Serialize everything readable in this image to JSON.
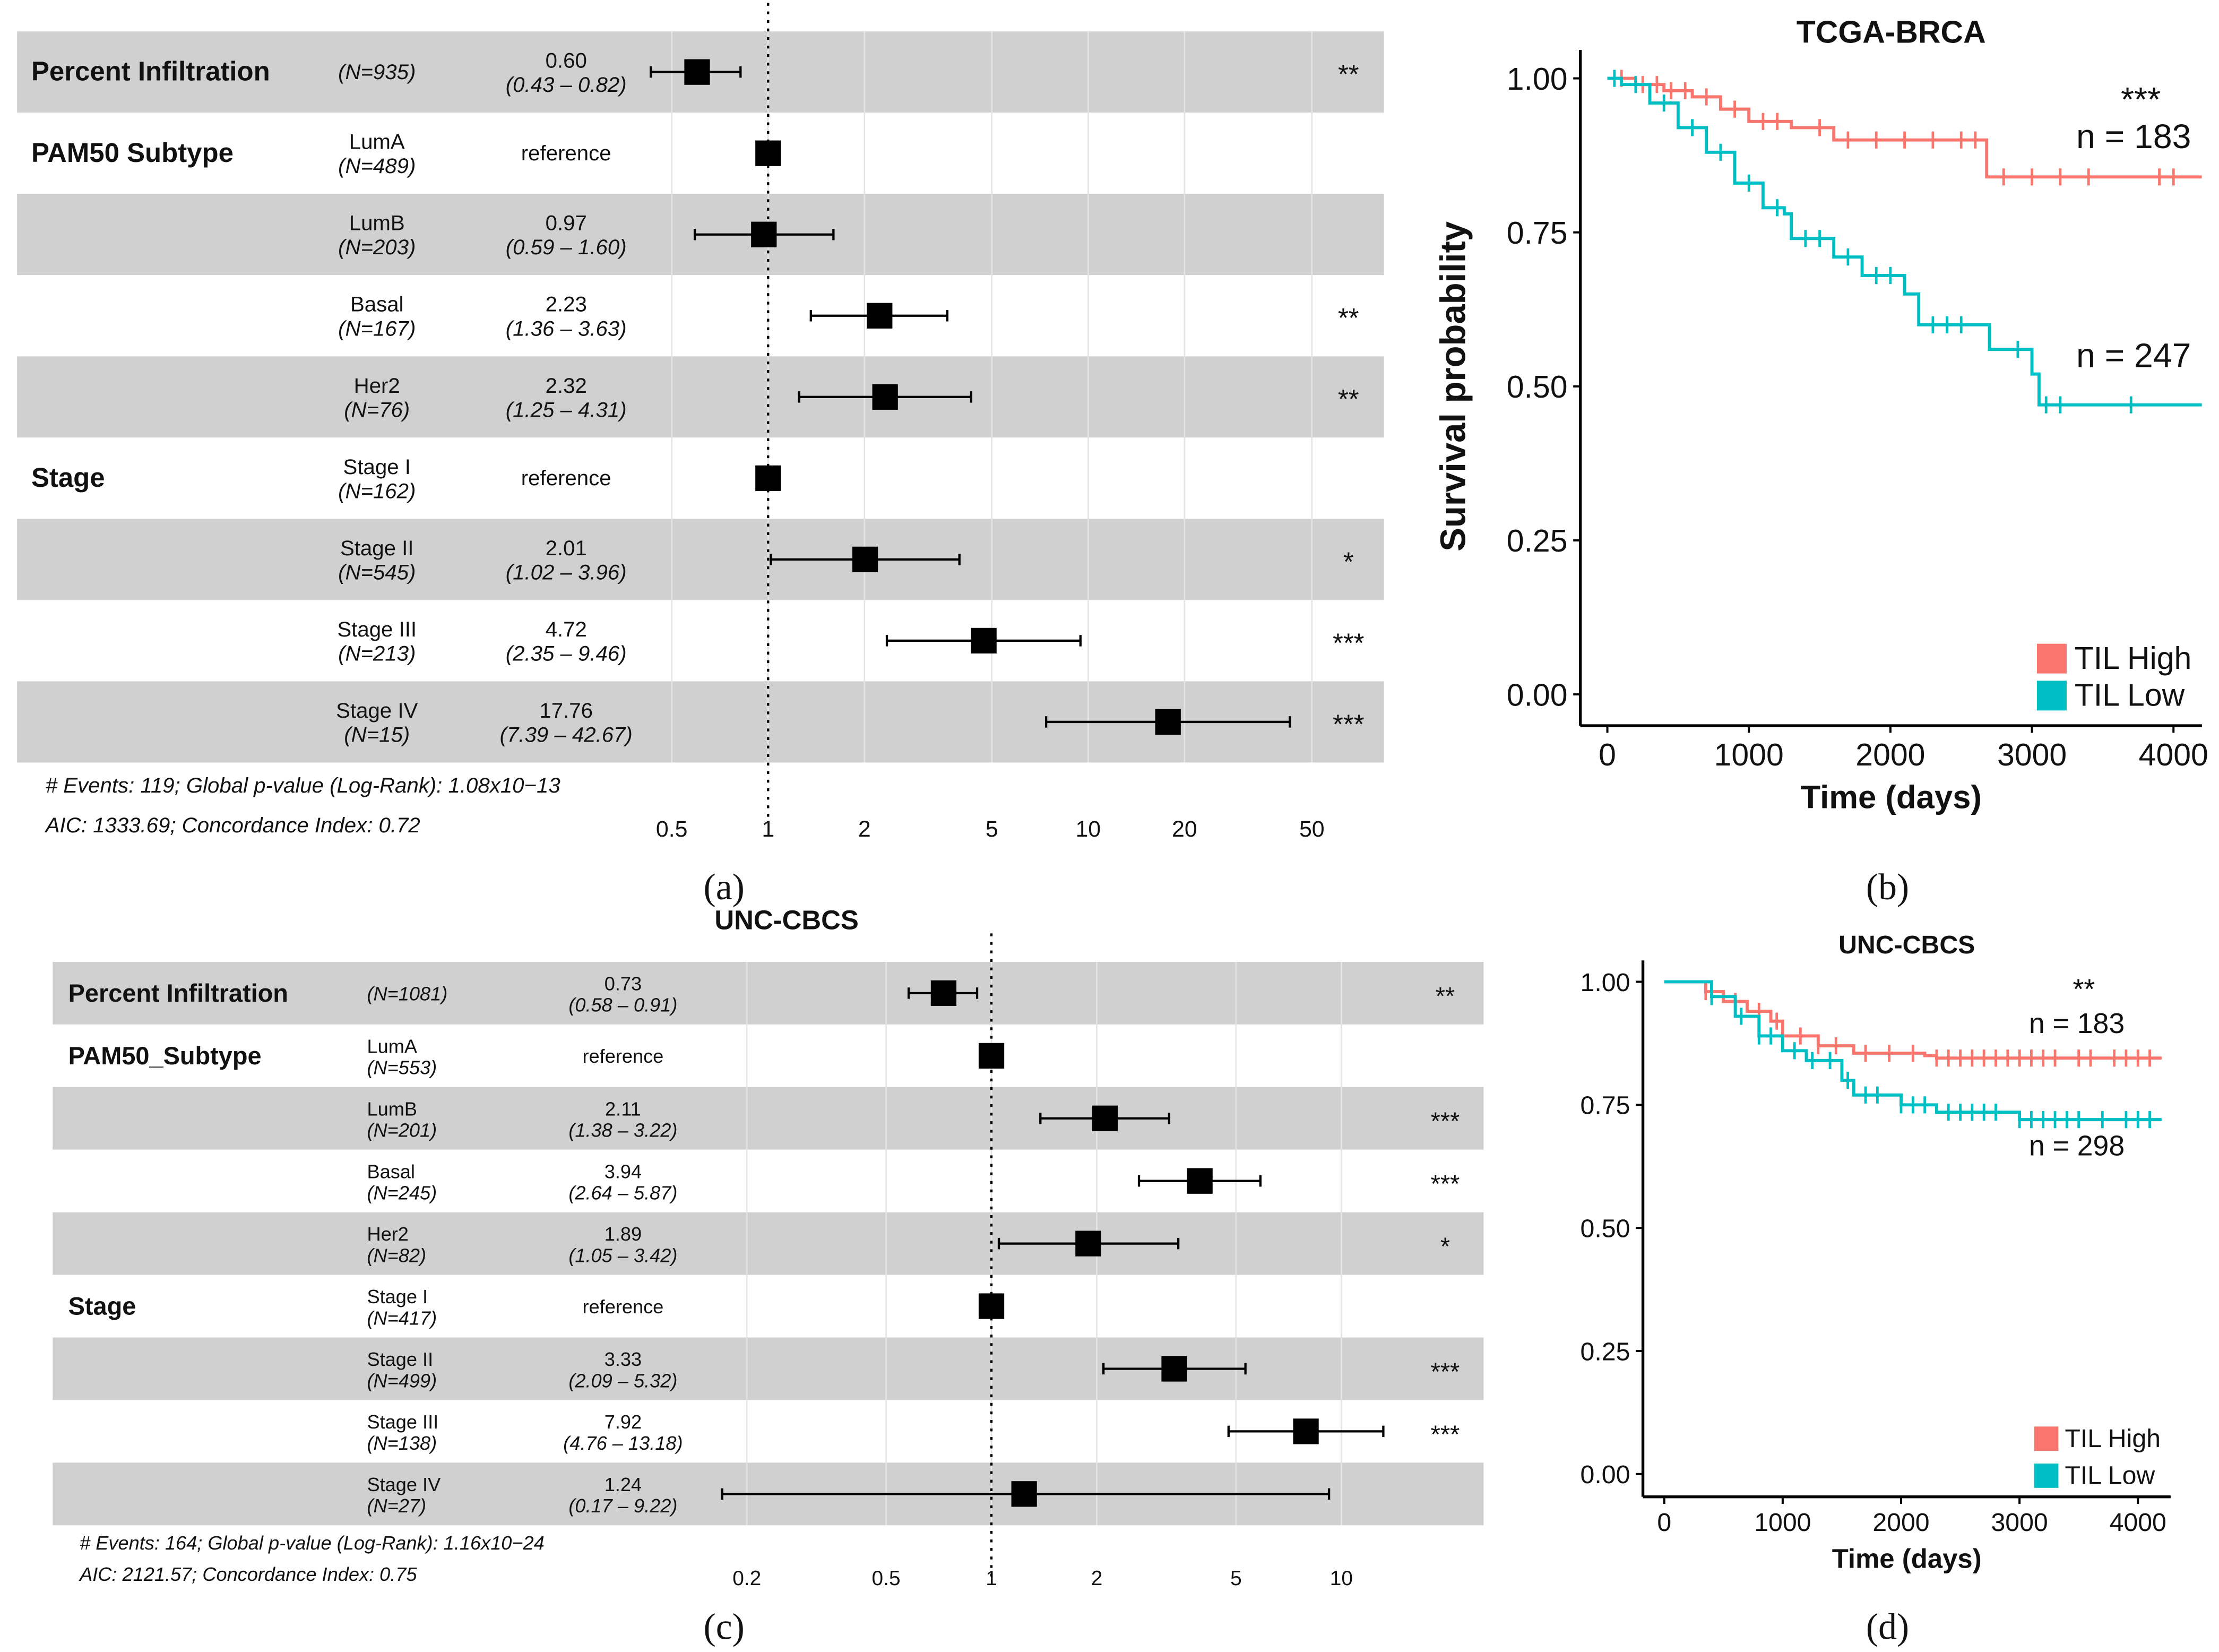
{
  "panel_labels": [
    "(a)",
    "(b)",
    "(c)",
    "(d)"
  ],
  "chart_data": [
    {
      "type": "forest",
      "title": "",
      "xscale": "log",
      "xticks": [
        "0.5",
        "1",
        "2",
        "5",
        "10",
        "20",
        "50"
      ],
      "xtick_values": [
        0.5,
        1,
        2,
        5,
        10,
        20,
        50
      ],
      "rows": [
        {
          "group": "Percent Infiltration",
          "label": "",
          "n": "(N=935)",
          "hr": "0.60",
          "ci": "(0.43 –  0.82)",
          "est": 0.6,
          "lo": 0.43,
          "hi": 0.82,
          "stars": "**",
          "shaded": true
        },
        {
          "group": "PAM50 Subtype",
          "label": "LumA",
          "n": "(N=489)",
          "hr": "reference",
          "ci": "",
          "est": 1,
          "lo": null,
          "hi": null,
          "stars": "",
          "shaded": false
        },
        {
          "group": "",
          "label": "LumB",
          "n": "(N=203)",
          "hr": "0.97",
          "ci": "(0.59 –  1.60)",
          "est": 0.97,
          "lo": 0.59,
          "hi": 1.6,
          "stars": "",
          "shaded": true
        },
        {
          "group": "",
          "label": "Basal",
          "n": "(N=167)",
          "hr": "2.23",
          "ci": "(1.36 –  3.63)",
          "est": 2.23,
          "lo": 1.36,
          "hi": 3.63,
          "stars": "**",
          "shaded": false
        },
        {
          "group": "",
          "label": "Her2",
          "n": "(N=76)",
          "hr": "2.32",
          "ci": "(1.25 –  4.31)",
          "est": 2.32,
          "lo": 1.25,
          "hi": 4.31,
          "stars": "**",
          "shaded": true
        },
        {
          "group": "Stage",
          "label": "Stage I",
          "n": "(N=162)",
          "hr": "reference",
          "ci": "",
          "est": 1,
          "lo": null,
          "hi": null,
          "stars": "",
          "shaded": false
        },
        {
          "group": "",
          "label": "Stage II",
          "n": "(N=545)",
          "hr": "2.01",
          "ci": "(1.02 –  3.96)",
          "est": 2.01,
          "lo": 1.02,
          "hi": 3.96,
          "stars": "*",
          "shaded": true
        },
        {
          "group": "",
          "label": "Stage III",
          "n": "(N=213)",
          "hr": "4.72",
          "ci": "(2.35 –  9.46)",
          "est": 4.72,
          "lo": 2.35,
          "hi": 9.46,
          "stars": "***",
          "shaded": false
        },
        {
          "group": "",
          "label": "Stage IV",
          "n": "(N=15)",
          "hr": "17.76",
          "ci": "(7.39 – 42.67)",
          "est": 17.76,
          "lo": 7.39,
          "hi": 42.67,
          "stars": "***",
          "shaded": true
        }
      ],
      "footer": [
        "# Events: 119; Global p-value (Log-Rank): 1.08x10−13",
        "AIC: 1333.69; Concordance Index: 0.72"
      ]
    },
    {
      "type": "line",
      "title": "TCGA-BRCA",
      "xlabel": "Time (days)",
      "ylabel": "Survival probability",
      "xlim": [
        0,
        4200
      ],
      "ylim": [
        0,
        1
      ],
      "xticks": [
        "0",
        "1000",
        "2000",
        "3000",
        "4000"
      ],
      "xtick_values": [
        0,
        1000,
        2000,
        3000,
        4000
      ],
      "yticks": [
        "0.00",
        "0.25",
        "0.50",
        "0.75",
        "1.00"
      ],
      "ytick_values": [
        0,
        0.25,
        0.5,
        0.75,
        1
      ],
      "legend_position": "bottom-right",
      "significance": "***",
      "series": [
        {
          "name": "TIL High",
          "color": "#f8766d",
          "n_label": "n = 183",
          "points": [
            [
              0,
              1
            ],
            [
              200,
              0.99
            ],
            [
              400,
              0.98
            ],
            [
              600,
              0.97
            ],
            [
              800,
              0.95
            ],
            [
              1000,
              0.93
            ],
            [
              1300,
              0.92
            ],
            [
              1600,
              0.9
            ],
            [
              2650,
              0.9
            ],
            [
              2680,
              0.84
            ],
            [
              4200,
              0.84
            ]
          ],
          "censor": [
            100,
            250,
            350,
            450,
            550,
            700,
            900,
            1100,
            1200,
            1500,
            1700,
            1900,
            2100,
            2300,
            2500,
            2600,
            2800,
            3000,
            3200,
            3400,
            3900,
            4000
          ]
        },
        {
          "name": "TIL Low",
          "color": "#00bfc4",
          "n_label": "n = 247",
          "points": [
            [
              0,
              1
            ],
            [
              100,
              0.99
            ],
            [
              300,
              0.96
            ],
            [
              500,
              0.92
            ],
            [
              700,
              0.88
            ],
            [
              900,
              0.83
            ],
            [
              1100,
              0.79
            ],
            [
              1250,
              0.78
            ],
            [
              1300,
              0.74
            ],
            [
              1600,
              0.71
            ],
            [
              1800,
              0.68
            ],
            [
              2100,
              0.65
            ],
            [
              2200,
              0.6
            ],
            [
              2650,
              0.6
            ],
            [
              2700,
              0.56
            ],
            [
              2950,
              0.56
            ],
            [
              3000,
              0.52
            ],
            [
              3050,
              0.47
            ],
            [
              4200,
              0.47
            ]
          ],
          "censor": [
            50,
            200,
            400,
            600,
            800,
            1000,
            1200,
            1400,
            1500,
            1700,
            1900,
            2000,
            2300,
            2400,
            2500,
            2900,
            3100,
            3200,
            3700
          ]
        }
      ]
    },
    {
      "type": "forest",
      "title": "UNC-CBCS",
      "xscale": "log",
      "xticks": [
        "0.2",
        "0.5",
        "1",
        "2",
        "5",
        "10"
      ],
      "xtick_values": [
        0.2,
        0.5,
        1,
        2,
        5,
        10
      ],
      "rows": [
        {
          "group": "Percent Infiltration",
          "label": "",
          "n": "(N=1081)",
          "hr": "0.73",
          "ci": "(0.58 –  0.91)",
          "est": 0.73,
          "lo": 0.58,
          "hi": 0.91,
          "stars": "**",
          "shaded": true
        },
        {
          "group": "PAM50_Subtype",
          "label": "LumA",
          "n": "(N=553)",
          "hr": "reference",
          "ci": "",
          "est": 1,
          "lo": null,
          "hi": null,
          "stars": "",
          "shaded": false
        },
        {
          "group": "",
          "label": "LumB",
          "n": "(N=201)",
          "hr": "2.11",
          "ci": "(1.38 –  3.22)",
          "est": 2.11,
          "lo": 1.38,
          "hi": 3.22,
          "stars": "***",
          "shaded": true
        },
        {
          "group": "",
          "label": "Basal",
          "n": "(N=245)",
          "hr": "3.94",
          "ci": "(2.64 –  5.87)",
          "est": 3.94,
          "lo": 2.64,
          "hi": 5.87,
          "stars": "***",
          "shaded": false
        },
        {
          "group": "",
          "label": "Her2",
          "n": "(N=82)",
          "hr": "1.89",
          "ci": "(1.05 –  3.42)",
          "est": 1.89,
          "lo": 1.05,
          "hi": 3.42,
          "stars": "*",
          "shaded": true
        },
        {
          "group": "Stage",
          "label": "Stage I",
          "n": "(N=417)",
          "hr": "reference",
          "ci": "",
          "est": 1,
          "lo": null,
          "hi": null,
          "stars": "",
          "shaded": false
        },
        {
          "group": "",
          "label": "Stage II",
          "n": "(N=499)",
          "hr": "3.33",
          "ci": "(2.09 –  5.32)",
          "est": 3.33,
          "lo": 2.09,
          "hi": 5.32,
          "stars": "***",
          "shaded": true
        },
        {
          "group": "",
          "label": "Stage III",
          "n": "(N=138)",
          "hr": "7.92",
          "ci": "(4.76 – 13.18)",
          "est": 7.92,
          "lo": 4.76,
          "hi": 13.18,
          "stars": "***",
          "shaded": false
        },
        {
          "group": "",
          "label": "Stage IV",
          "n": "(N=27)",
          "hr": "1.24",
          "ci": "(0.17 –  9.22)",
          "est": 1.24,
          "lo": 0.17,
          "hi": 9.22,
          "stars": "",
          "shaded": true
        }
      ],
      "footer": [
        "# Events: 164; Global p-value (Log-Rank): 1.16x10−24",
        "AIC: 2121.57; Concordance Index: 0.75"
      ]
    },
    {
      "type": "line",
      "title": "UNC-CBCS",
      "xlabel": "Time (days)",
      "ylabel": "",
      "xlim": [
        0,
        4200
      ],
      "ylim": [
        0,
        1
      ],
      "xticks": [
        "0",
        "1000",
        "2000",
        "3000",
        "4000"
      ],
      "xtick_values": [
        0,
        1000,
        2000,
        3000,
        4000
      ],
      "yticks": [
        "0.00",
        "0.25",
        "0.50",
        "0.75",
        "1.00"
      ],
      "ytick_values": [
        0,
        0.25,
        0.5,
        0.75,
        1
      ],
      "legend_position": "bottom-right",
      "significance": "**",
      "series": [
        {
          "name": "TIL High",
          "color": "#f8766d",
          "n_label": "n = 183",
          "points": [
            [
              0,
              1
            ],
            [
              250,
              1
            ],
            [
              350,
              0.98
            ],
            [
              500,
              0.96
            ],
            [
              700,
              0.94
            ],
            [
              900,
              0.92
            ],
            [
              1000,
              0.89
            ],
            [
              1300,
              0.87
            ],
            [
              1600,
              0.855
            ],
            [
              2200,
              0.85
            ],
            [
              2300,
              0.845
            ],
            [
              4200,
              0.845
            ]
          ],
          "censor": [
            350,
            600,
            800,
            950,
            1150,
            1300,
            1450,
            1700,
            1900,
            2100,
            2300,
            2400,
            2500,
            2600,
            2700,
            2800,
            2900,
            3000,
            3100,
            3200,
            3300,
            3500,
            3600,
            3800,
            3900,
            4000,
            4100
          ]
        },
        {
          "name": "TIL Low",
          "color": "#00bfc4",
          "n_label": "n = 298",
          "points": [
            [
              0,
              1
            ],
            [
              250,
              1
            ],
            [
              400,
              0.97
            ],
            [
              600,
              0.93
            ],
            [
              800,
              0.89
            ],
            [
              1000,
              0.86
            ],
            [
              1200,
              0.84
            ],
            [
              1500,
              0.8
            ],
            [
              1600,
              0.77
            ],
            [
              2000,
              0.75
            ],
            [
              2300,
              0.735
            ],
            [
              3000,
              0.72
            ],
            [
              4200,
              0.72
            ]
          ],
          "censor": [
            400,
            650,
            800,
            900,
            1100,
            1250,
            1400,
            1550,
            1700,
            1800,
            2000,
            2100,
            2200,
            2400,
            2500,
            2600,
            2700,
            2800,
            3000,
            3100,
            3200,
            3300,
            3400,
            3500,
            3700,
            3900,
            4000,
            4100
          ]
        }
      ]
    }
  ]
}
